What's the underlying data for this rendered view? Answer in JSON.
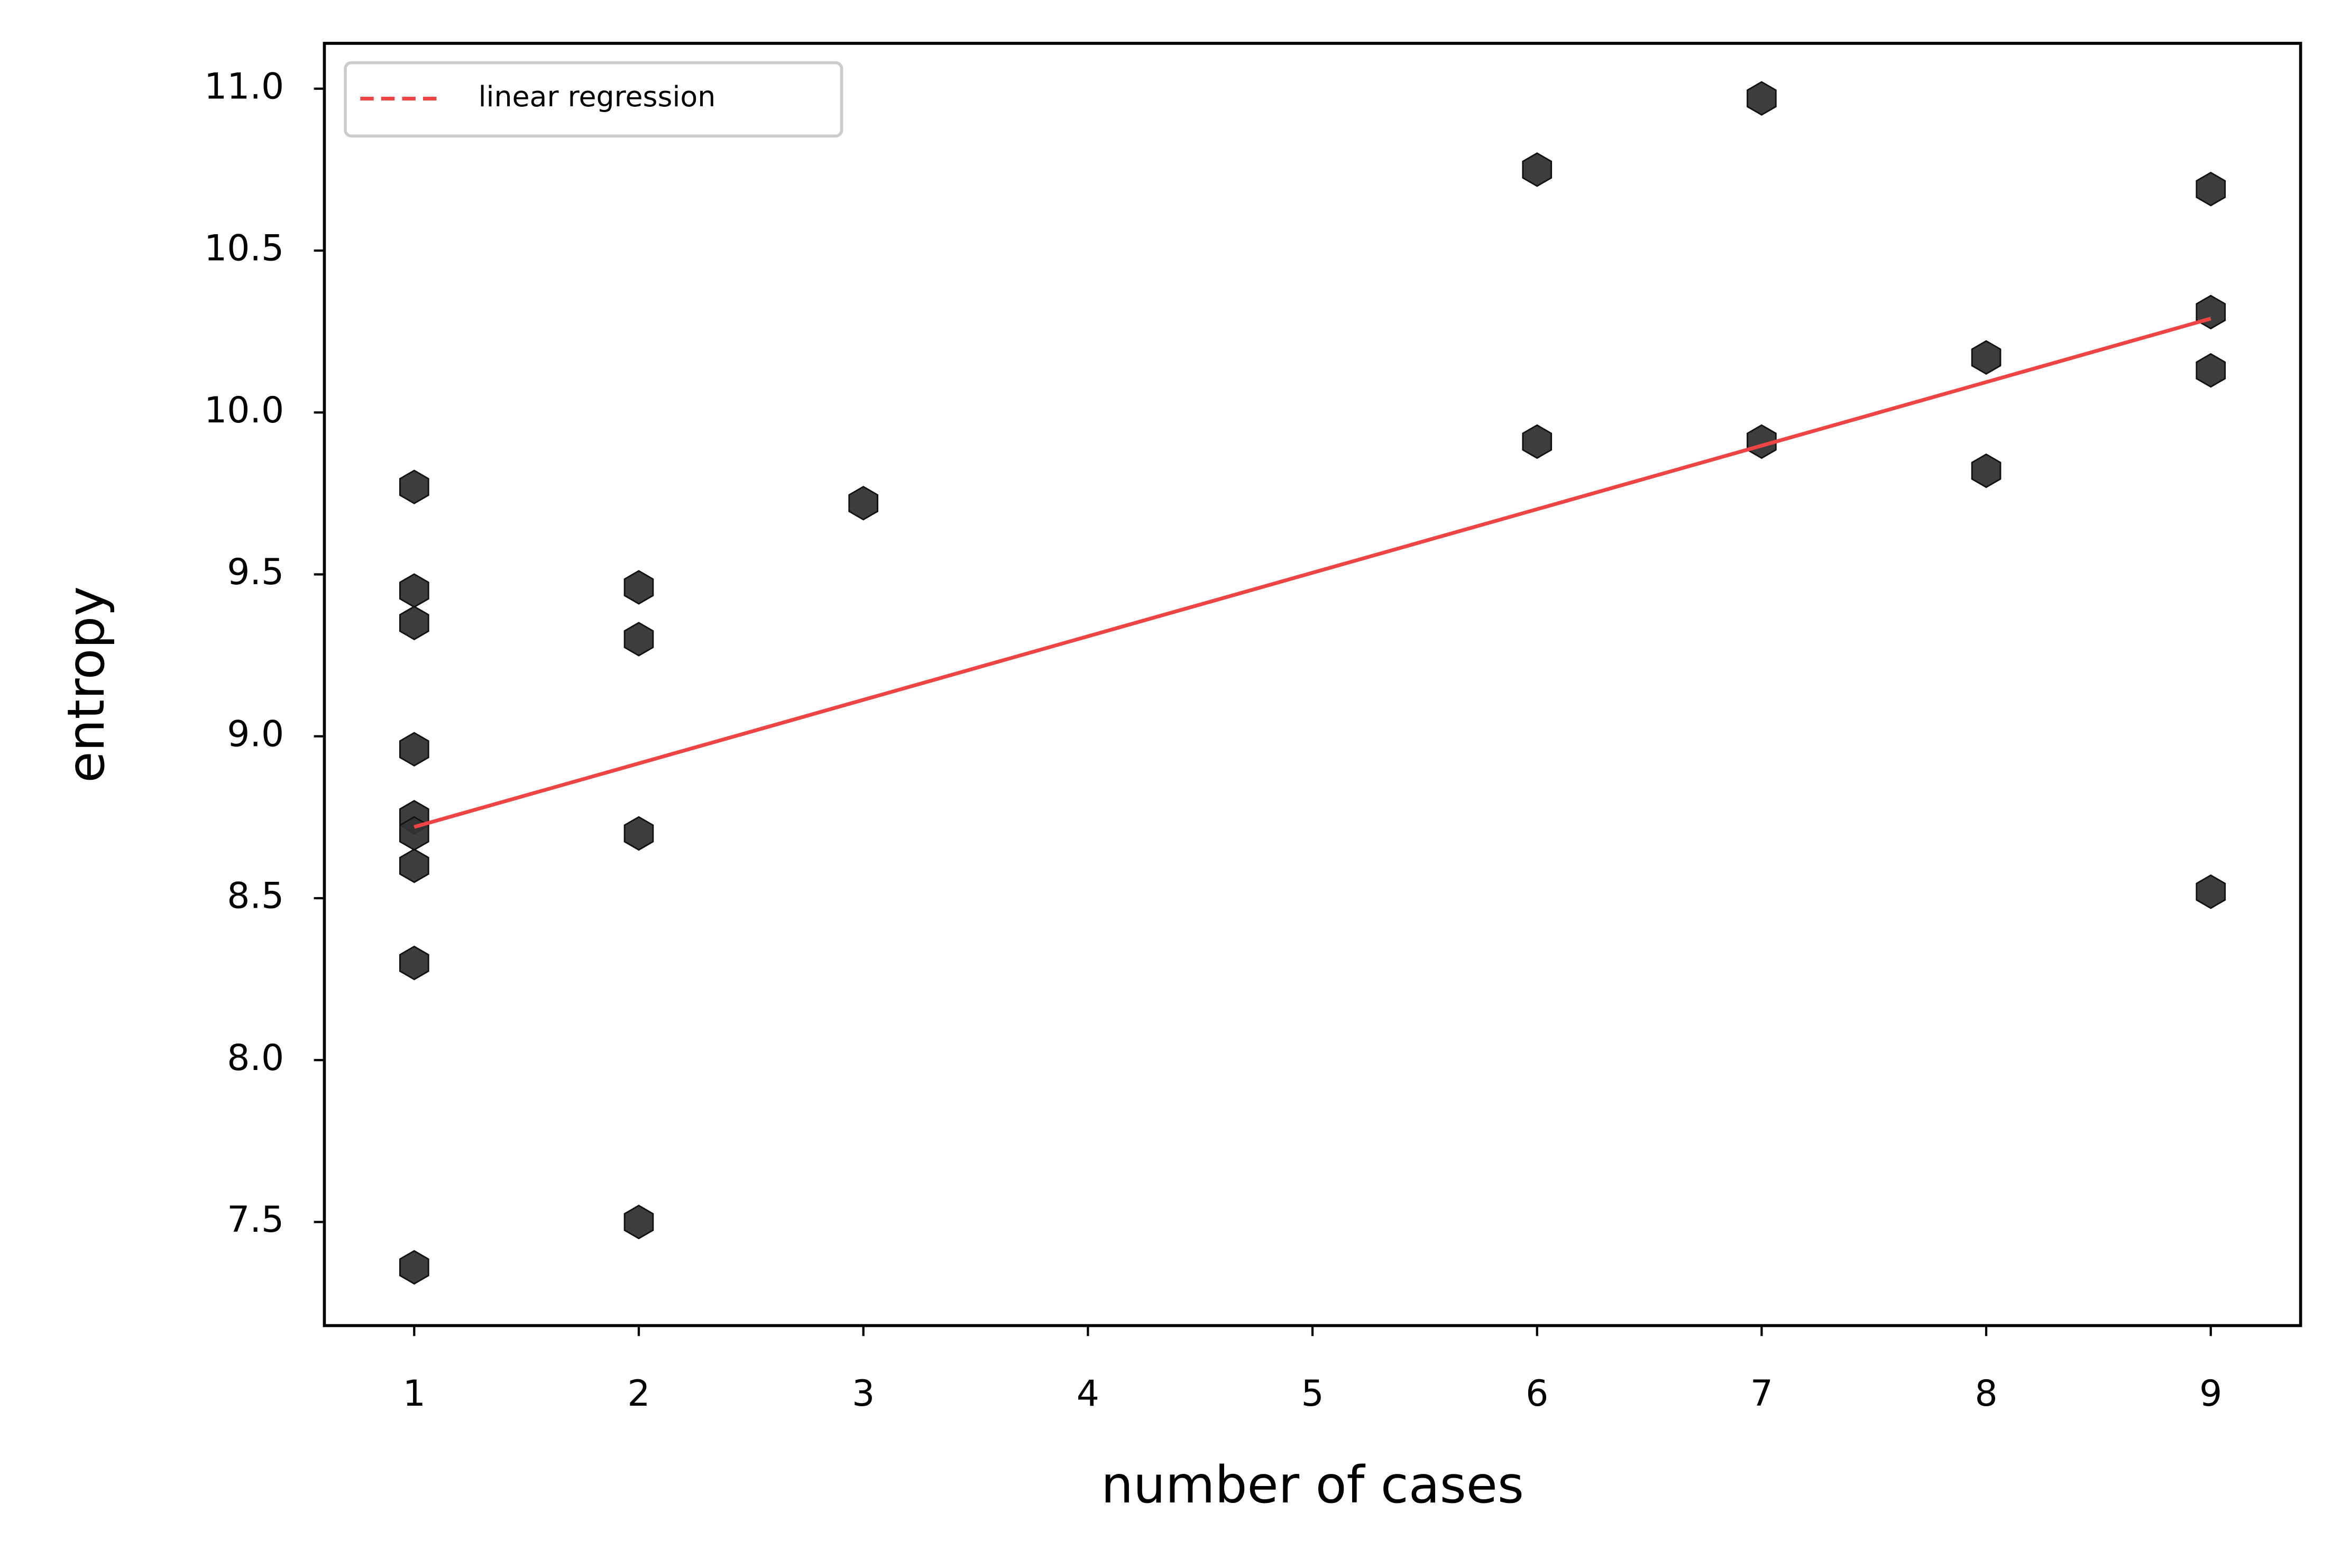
{
  "chart_data": {
    "type": "scatter",
    "xlabel": "number of cases",
    "ylabel": "entropy",
    "xlim": [
      0.6,
      9.4
    ],
    "ylim": [
      7.18,
      11.14
    ],
    "xticks": [
      1,
      2,
      3,
      4,
      5,
      6,
      7,
      8,
      9
    ],
    "yticks": [
      7.5,
      {
        "value": 8,
        "label": "8.0"
      },
      8.5,
      {
        "value": 9,
        "label": "9.0"
      },
      9.5,
      {
        "value": 10,
        "label": "10.0"
      },
      10.5,
      {
        "value": 11,
        "label": "11.0"
      }
    ],
    "legend": "upper left",
    "series": [
      {
        "type": "scatter",
        "color": "#333333",
        "x": [
          1,
          1,
          1,
          1,
          1,
          1,
          1,
          1,
          1,
          2,
          2,
          2,
          2,
          3,
          6,
          6,
          7,
          7,
          8,
          8,
          9,
          9,
          9,
          9
        ],
        "values": [
          9.77,
          9.45,
          9.35,
          8.96,
          8.75,
          8.7,
          8.6,
          8.3,
          7.36,
          9.46,
          9.3,
          8.7,
          7.5,
          9.72,
          10.75,
          9.91,
          10.97,
          9.91,
          10.17,
          9.82,
          10.69,
          10.31,
          10.13,
          8.52
        ]
      },
      {
        "type": "line",
        "name": "linear regression",
        "color": "#ee4444",
        "linestyle": "dashed",
        "x": [
          1,
          9
        ],
        "values": [
          8.72,
          10.29
        ]
      }
    ]
  }
}
